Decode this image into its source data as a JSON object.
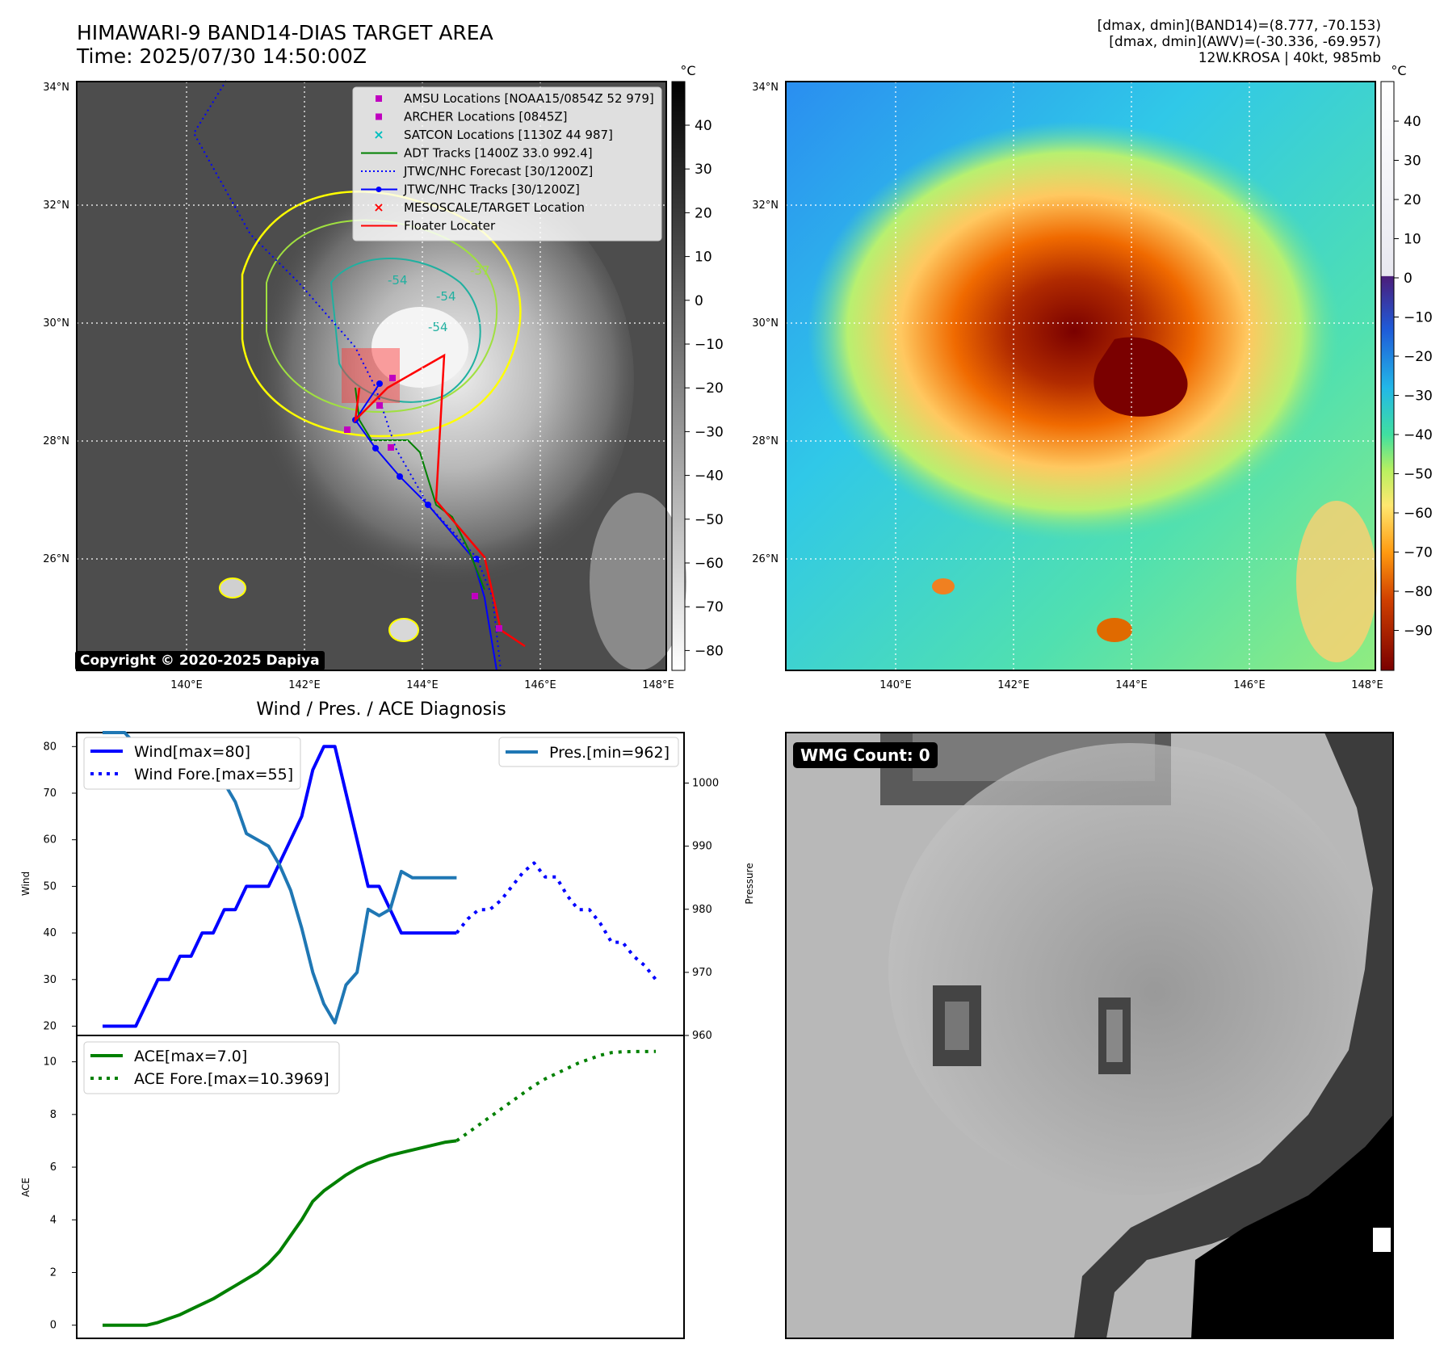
{
  "header": {
    "title_line1": "HIMAWARI-9 BAND14-DIAS TARGET AREA",
    "title_line2": "Time: 2025/07/30 14:50:00Z",
    "meta_line1": "[dmax, dmin](BAND14)=(8.777, -70.153)",
    "meta_line2": "[dmax, dmin](AWV)=(-30.336, -69.957)",
    "meta_line3": "12W.KROSA | 40kt, 985mb"
  },
  "map": {
    "lat_ticks": [
      "34°N",
      "32°N",
      "30°N",
      "28°N",
      "26°N"
    ],
    "lon_ticks": [
      "140°E",
      "142°E",
      "144°E",
      "146°E",
      "148°E"
    ],
    "copyright": "Copyright © 2020-2025 Dapiya",
    "contour_labels": [
      "-54",
      "-54",
      "-54",
      "-37"
    ],
    "legend": [
      {
        "label": "AMSU Locations [NOAA15/0854Z 52 979]",
        "color": "#c000c0",
        "marker": "square"
      },
      {
        "label": "ARCHER Locations [0845Z]",
        "color": "#c000c0",
        "marker": "square"
      },
      {
        "label": "SATCON Locations [1130Z 44 987]",
        "color": "#00bfbf",
        "marker": "x"
      },
      {
        "label": "ADT Tracks [1400Z 33.0 992.4]",
        "color": "#008000",
        "marker": "line"
      },
      {
        "label": "JTWC/NHC Forecast [30/1200Z]",
        "color": "#0000ff",
        "marker": "dotted"
      },
      {
        "label": "JTWC/NHC Tracks [30/1200Z]",
        "color": "#0000ff",
        "marker": "line-dot"
      },
      {
        "label": "MESOSCALE/TARGET Location",
        "color": "#ff0000",
        "marker": "x"
      },
      {
        "label": "Floater Locater",
        "color": "#ff0000",
        "marker": "line"
      }
    ]
  },
  "colorbar_gray": {
    "unit": "°C",
    "ticks": [
      "40",
      "30",
      "20",
      "10",
      "0",
      "−10",
      "−20",
      "−30",
      "−40",
      "−50",
      "−60",
      "−70",
      "−80"
    ]
  },
  "colorbar_color": {
    "unit": "°C",
    "ticks": [
      "40",
      "30",
      "20",
      "10",
      "0",
      "−10",
      "−20",
      "−30",
      "−40",
      "−50",
      "−60",
      "−70",
      "−80",
      "−90"
    ]
  },
  "diagnosis": {
    "title": "Wind / Pres. / ACE Diagnosis",
    "wmg_label": "WMG Count: 0"
  },
  "chart_data": [
    {
      "type": "line",
      "title": "Wind / Pres. / ACE Diagnosis",
      "ylabel": "Wind",
      "ylim": [
        18,
        83
      ],
      "yticks": [
        "20",
        "30",
        "40",
        "50",
        "60",
        "70",
        "80"
      ],
      "y2label": "Pressure",
      "y2lim": [
        960,
        1008
      ],
      "y2ticks": [
        "960",
        "970",
        "980",
        "990",
        "1000"
      ],
      "series": [
        {
          "name": "Wind[max=80]",
          "style": "solid",
          "color": "#0000ff",
          "axis": "left",
          "x": [
            0,
            1,
            2,
            3,
            4,
            5,
            6,
            7,
            8,
            9,
            10,
            11,
            12,
            13,
            14,
            15,
            16,
            17,
            18,
            19,
            20,
            21,
            22,
            23,
            24,
            25,
            26,
            27,
            28,
            29,
            30,
            31,
            32,
            33,
            34,
            35,
            36,
            37,
            38,
            39,
            40,
            41,
            42
          ],
          "values": [
            20,
            20,
            20,
            20,
            25,
            30,
            30,
            35,
            35,
            40,
            40,
            45,
            45,
            50,
            50,
            50,
            55,
            60,
            65,
            75,
            80,
            80,
            70,
            60,
            50,
            50,
            45,
            40,
            40,
            40,
            40,
            40,
            40,
            null,
            null,
            null,
            null,
            null,
            null,
            null,
            null,
            null,
            null
          ]
        },
        {
          "name": "Wind Fore.[max=55]",
          "style": "dotted",
          "color": "#0000ff",
          "axis": "left",
          "x": [
            32,
            33,
            34,
            35,
            36,
            37,
            38,
            39,
            40,
            41,
            42,
            43,
            44,
            45,
            46,
            47,
            48,
            49,
            50
          ],
          "values": [
            40,
            43,
            45,
            45,
            47,
            50,
            53,
            55,
            52,
            52,
            48,
            45,
            45,
            42,
            38,
            38,
            35,
            33,
            30
          ]
        },
        {
          "name": "Pres.[min=962]",
          "style": "solid",
          "color": "#1f77b4",
          "axis": "right",
          "x": [
            0,
            1,
            2,
            3,
            4,
            5,
            6,
            7,
            8,
            9,
            10,
            11,
            12,
            13,
            14,
            15,
            16,
            17,
            18,
            19,
            20,
            21,
            22,
            23,
            24,
            25,
            26,
            27,
            28,
            29,
            30,
            31,
            32
          ],
          "values": [
            1008,
            1008,
            1008,
            1006,
            1006,
            1005,
            1004,
            1002,
            1002,
            1000,
            1000,
            1000,
            997,
            992,
            991,
            990,
            987,
            983,
            977,
            970,
            965,
            962,
            968,
            970,
            980,
            979,
            980,
            986,
            985,
            985,
            985,
            985,
            985
          ]
        }
      ]
    },
    {
      "type": "line",
      "ylabel": "ACE",
      "ylim": [
        -0.5,
        11
      ],
      "yticks": [
        "0",
        "2",
        "4",
        "6",
        "8",
        "10"
      ],
      "series": [
        {
          "name": "ACE[max=7.0]",
          "style": "solid",
          "color": "#008000",
          "x": [
            0,
            1,
            2,
            3,
            4,
            5,
            6,
            7,
            8,
            9,
            10,
            11,
            12,
            13,
            14,
            15,
            16,
            17,
            18,
            19,
            20,
            21,
            22,
            23,
            24,
            25,
            26,
            27,
            28,
            29,
            30,
            31,
            32
          ],
          "values": [
            0,
            0,
            0,
            0,
            0,
            0.1,
            0.25,
            0.4,
            0.6,
            0.8,
            1.0,
            1.25,
            1.5,
            1.75,
            2.0,
            2.35,
            2.8,
            3.4,
            4.0,
            4.7,
            5.1,
            5.4,
            5.7,
            5.95,
            6.15,
            6.3,
            6.45,
            6.55,
            6.65,
            6.75,
            6.85,
            6.95,
            7.0
          ]
        },
        {
          "name": "ACE Fore.[max=10.3969]",
          "style": "dotted",
          "color": "#008000",
          "x": [
            32,
            33,
            34,
            35,
            36,
            37,
            38,
            39,
            40,
            41,
            42,
            43,
            44,
            45,
            46,
            47,
            48,
            49,
            50
          ],
          "values": [
            7.0,
            7.3,
            7.6,
            7.9,
            8.2,
            8.5,
            8.8,
            9.1,
            9.35,
            9.55,
            9.75,
            9.95,
            10.1,
            10.25,
            10.35,
            10.38,
            10.39,
            10.39,
            10.3969
          ]
        }
      ]
    }
  ]
}
